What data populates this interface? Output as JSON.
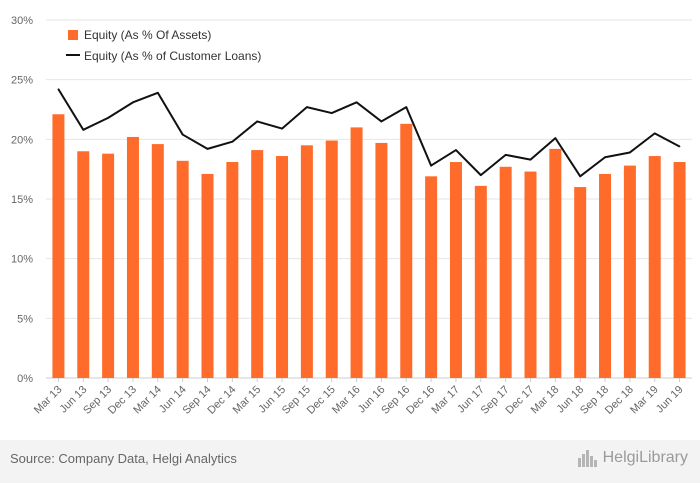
{
  "chart_data": {
    "type": "bar",
    "categories": [
      "Mar 13",
      "Jun 13",
      "Sep 13",
      "Dec 13",
      "Mar 14",
      "Jun 14",
      "Sep 14",
      "Dec 14",
      "Mar 15",
      "Jun 15",
      "Sep 15",
      "Dec 15",
      "Mar 16",
      "Jun 16",
      "Sep 16",
      "Dec 16",
      "Mar 17",
      "Jun 17",
      "Sep 17",
      "Dec 17",
      "Mar 18",
      "Jun 18",
      "Sep 18",
      "Dec 18",
      "Mar 19",
      "Jun 19"
    ],
    "series": [
      {
        "name": "Equity (As % Of Assets)",
        "kind": "bar",
        "color": "#ff6b2b",
        "values": [
          22.1,
          19.0,
          18.8,
          20.2,
          19.6,
          18.2,
          17.1,
          18.1,
          19.1,
          18.6,
          19.5,
          19.9,
          21.0,
          19.7,
          21.3,
          16.9,
          18.1,
          16.1,
          17.7,
          17.3,
          19.2,
          16.0,
          17.1,
          17.8,
          18.6,
          18.1
        ]
      },
      {
        "name": "Equity (As % of Customer Loans)",
        "kind": "line",
        "color": "#111111",
        "values": [
          24.2,
          20.8,
          21.8,
          23.1,
          23.9,
          20.4,
          19.2,
          19.8,
          21.5,
          20.9,
          22.7,
          22.2,
          23.1,
          21.5,
          22.7,
          17.8,
          19.1,
          17.0,
          18.7,
          18.3,
          20.1,
          16.9,
          18.5,
          18.9,
          20.5,
          19.4
        ]
      }
    ],
    "y_ticks": [
      "0%",
      "5%",
      "10%",
      "15%",
      "20%",
      "25%",
      "30%"
    ],
    "ylim": [
      0,
      30
    ],
    "grid": true,
    "legend_position": "top-left"
  },
  "footer": {
    "source": "Source: Company Data, Helgi Analytics",
    "brand": "HelgiLibrary"
  },
  "colors": {
    "bar": "#ff6b2b",
    "line": "#111111",
    "grid": "#e6e6e6",
    "footer_bg": "#f3f3f3"
  }
}
